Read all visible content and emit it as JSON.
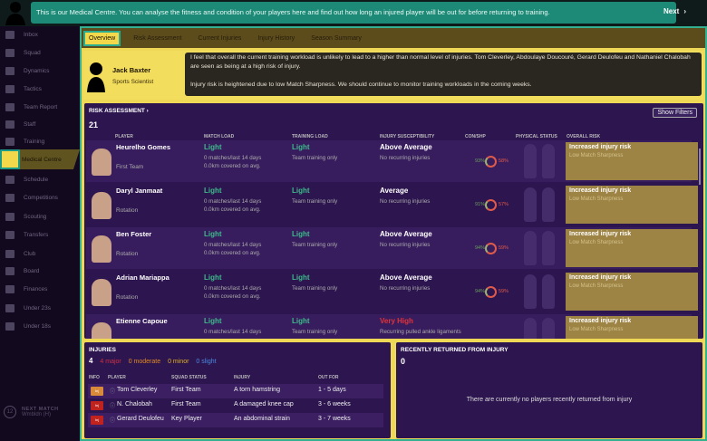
{
  "banner": {
    "text": "This is our Medical Centre. You can analyse the fitness and condition of your players here and find out how long an injured player will be out for before returning to training.",
    "next_label": "Next",
    "next_icon": "chevron-right-icon"
  },
  "sidebar": {
    "items": [
      {
        "label": "Inbox"
      },
      {
        "label": "Squad"
      },
      {
        "label": "Dynamics"
      },
      {
        "label": "Tactics"
      },
      {
        "label": "Team Report"
      },
      {
        "label": "Staff"
      },
      {
        "label": "Training"
      },
      {
        "label": "Medical Centre",
        "active": true
      },
      {
        "label": "Schedule"
      },
      {
        "label": "Competitions"
      },
      {
        "label": "Scouting"
      },
      {
        "label": "Transfers"
      },
      {
        "label": "Club"
      },
      {
        "label": "Board"
      },
      {
        "label": "Finances"
      },
      {
        "label": "Under 23s"
      },
      {
        "label": "Under 18s"
      }
    ],
    "next_match": {
      "label": "NEXT MATCH",
      "opponent": "Wmbldn (H)",
      "days": "12"
    }
  },
  "tabs": [
    {
      "label": "Overview",
      "selected": true
    },
    {
      "label": "Risk Assessment"
    },
    {
      "label": "Current Injuries"
    },
    {
      "label": "Injury History"
    },
    {
      "label": "Season Summary"
    }
  ],
  "advisor": {
    "name": "Jack Baxter",
    "role": "Sports Scientist",
    "line1": "I feel that overall the current training workload is unlikely to lead to a higher than normal level of injuries. Tom Cleverley, Abdoulaye Doucouré, Gerard Deulofeu and Nathaniel Chalobah are seen as being at a high risk of injury.",
    "line2": "Injury risk is heightened due to low Match Sharpness. We should continue to monitor training workloads in the coming weeks."
  },
  "risk": {
    "title": "RISK ASSESSMENT ›",
    "count": "21",
    "show_filters": "Show Filters",
    "columns": [
      "PLAYER",
      "MATCH LOAD",
      "TRAINING LOAD",
      "INJURY SUSCEPTIBILITY",
      "CON/SHP",
      "PHYSICAL STATUS",
      "OVERALL RISK"
    ],
    "rows": [
      {
        "name": "Heurelho Gomes",
        "status": "First Team",
        "match_load": "Light",
        "match_sub1": "0 matches/last 14 days",
        "match_sub2": "0.0km covered on avg.",
        "training_load": "Light",
        "training_sub": "Team training only",
        "susceptibility": "Above Average",
        "sus_sub": "No recurring injuries",
        "con": "93%",
        "shp": "58%",
        "risk": "Increased injury risk",
        "risk_sub": "Low Match Sharpness"
      },
      {
        "name": "Daryl Janmaat",
        "status": "Rotation",
        "match_load": "Light",
        "match_sub1": "0 matches/last 14 days",
        "match_sub2": "0.0km covered on avg.",
        "training_load": "Light",
        "training_sub": "Team training only",
        "susceptibility": "Average",
        "sus_sub": "No recurring injuries",
        "con": "91%",
        "shp": "57%",
        "risk": "Increased injury risk",
        "risk_sub": "Low Match Sharpness"
      },
      {
        "name": "Ben Foster",
        "status": "Rotation",
        "match_load": "Light",
        "match_sub1": "0 matches/last 14 days",
        "match_sub2": "0.0km covered on avg.",
        "training_load": "Light",
        "training_sub": "Team training only",
        "susceptibility": "Above Average",
        "sus_sub": "No recurring injuries",
        "con": "94%",
        "shp": "59%",
        "risk": "Increased injury risk",
        "risk_sub": "Low Match Sharpness"
      },
      {
        "name": "Adrian Mariappa",
        "status": "Rotation",
        "match_load": "Light",
        "match_sub1": "0 matches/last 14 days",
        "match_sub2": "0.0km covered on avg.",
        "training_load": "Light",
        "training_sub": "Team training only",
        "susceptibility": "Above Average",
        "sus_sub": "No recurring injuries",
        "con": "94%",
        "shp": "59%",
        "risk": "Increased injury risk",
        "risk_sub": "Low Match Sharpness"
      },
      {
        "name": "Etienne Capoue",
        "status": "",
        "match_load": "Light",
        "match_sub1": "0 matches/last 14 days",
        "match_sub2": "",
        "training_load": "Light",
        "training_sub": "Team training only",
        "susceptibility": "Very High",
        "sus_sub": "Recurring pulled ankle ligaments",
        "con": "",
        "shp": "",
        "risk": "Increased injury risk",
        "risk_sub": "Low Match Sharpness"
      }
    ]
  },
  "injuries": {
    "title": "INJURIES",
    "count": "4",
    "major": "4 major",
    "moderate": "0 moderate",
    "minor": "0 minor",
    "slight": "0 slight",
    "columns": [
      "INFO",
      "PLAYER",
      "SQUAD STATUS",
      "INJURY",
      "OUT FOR"
    ],
    "rows": [
      {
        "badge": "Inj",
        "badge_color": "#d9893a",
        "player": "Tom Cleverley",
        "squad": "First Team",
        "injury": "A torn hamstring",
        "out": "1 - 5 days"
      },
      {
        "badge": "Inj",
        "badge_color": "#c0221e",
        "player": "N. Chalobah",
        "squad": "First Team",
        "injury": "A damaged knee cap",
        "out": "3 - 6 weeks"
      },
      {
        "badge": "Inj",
        "badge_color": "#c0221e",
        "player": "Gerard Deulofeu",
        "squad": "Key Player",
        "injury": "An abdominal strain",
        "out": "3 - 7 weeks"
      }
    ]
  },
  "returned": {
    "title": "RECENTLY RETURNED FROM INJURY",
    "count": "0",
    "empty": "There are currently no players recently returned from injury"
  }
}
